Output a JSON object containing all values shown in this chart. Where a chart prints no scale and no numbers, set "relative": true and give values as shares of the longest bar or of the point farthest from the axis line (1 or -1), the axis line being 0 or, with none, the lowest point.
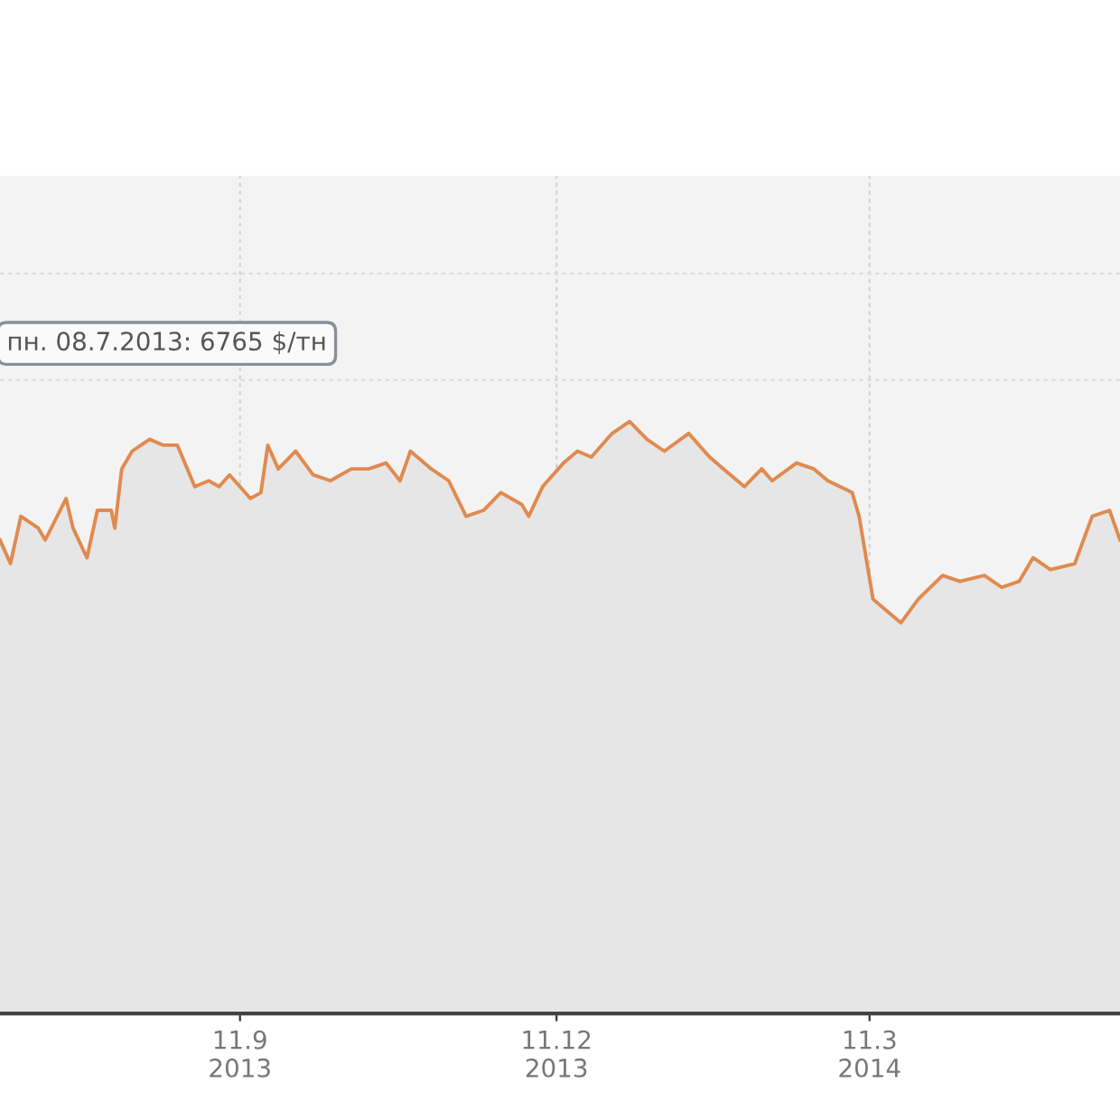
{
  "chart_data": {
    "type": "line",
    "relative": true,
    "grid": true,
    "legend": false,
    "line_style": "solid",
    "annotations": [
      "пн. 08.7.2013: 6765 $/тн"
    ],
    "xlim": [
      "2013-07-04",
      "2014-05-22"
    ],
    "xticks": [
      {
        "value": "2013-09-11",
        "label": "11.9\n2013"
      },
      {
        "value": "2013-12-11",
        "label": "11.12\n2013"
      },
      {
        "value": "2014-03-11",
        "label": "11.3\n2014"
      }
    ],
    "series": [
      {
        "color": "#e08a4f",
        "x": [
          "2013-07-04",
          "2013-07-07",
          "2013-07-10",
          "2013-07-15",
          "2013-07-17",
          "2013-07-23",
          "2013-07-25",
          "2013-07-29",
          "2013-08-01",
          "2013-08-05",
          "2013-08-06",
          "2013-08-08",
          "2013-08-11",
          "2013-08-16",
          "2013-08-20",
          "2013-08-24",
          "2013-08-29",
          "2013-09-02",
          "2013-09-05",
          "2013-09-08",
          "2013-09-14",
          "2013-09-17",
          "2013-09-19",
          "2013-09-22",
          "2013-09-27",
          "2013-10-02",
          "2013-10-07",
          "2013-10-13",
          "2013-10-18",
          "2013-10-23",
          "2013-10-27",
          "2013-10-30",
          "2013-11-05",
          "2013-11-10",
          "2013-11-15",
          "2013-11-20",
          "2013-11-25",
          "2013-12-01",
          "2013-12-03",
          "2013-12-07",
          "2013-12-13",
          "2013-12-17",
          "2013-12-21",
          "2013-12-27",
          "2014-01-01",
          "2014-01-06",
          "2014-01-11",
          "2014-01-18",
          "2014-01-24",
          "2014-01-28",
          "2014-02-03",
          "2014-02-08",
          "2014-02-11",
          "2014-02-18",
          "2014-02-23",
          "2014-02-27",
          "2014-03-06",
          "2014-03-08",
          "2014-03-12",
          "2014-03-16",
          "2014-03-20",
          "2014-03-25",
          "2014-04-01",
          "2014-04-06",
          "2014-04-13",
          "2014-04-18",
          "2014-04-23",
          "2014-04-27",
          "2014-05-02",
          "2014-05-09",
          "2014-05-14",
          "2014-05-19",
          "2014-05-22"
        ],
        "values": [
          0.8,
          0.76,
          0.84,
          0.82,
          0.8,
          0.87,
          0.82,
          0.77,
          0.85,
          0.85,
          0.82,
          0.92,
          0.95,
          0.97,
          0.96,
          0.96,
          0.89,
          0.9,
          0.89,
          0.91,
          0.87,
          0.88,
          0.96,
          0.92,
          0.95,
          0.91,
          0.9,
          0.92,
          0.92,
          0.93,
          0.9,
          0.95,
          0.92,
          0.9,
          0.84,
          0.85,
          0.88,
          0.86,
          0.84,
          0.89,
          0.93,
          0.95,
          0.94,
          0.98,
          1.0,
          0.97,
          0.95,
          0.98,
          0.94,
          0.92,
          0.89,
          0.92,
          0.9,
          0.93,
          0.92,
          0.9,
          0.88,
          0.84,
          0.7,
          0.68,
          0.66,
          0.7,
          0.74,
          0.73,
          0.74,
          0.72,
          0.73,
          0.77,
          0.75,
          0.76,
          0.84,
          0.85,
          0.8
        ]
      }
    ]
  }
}
